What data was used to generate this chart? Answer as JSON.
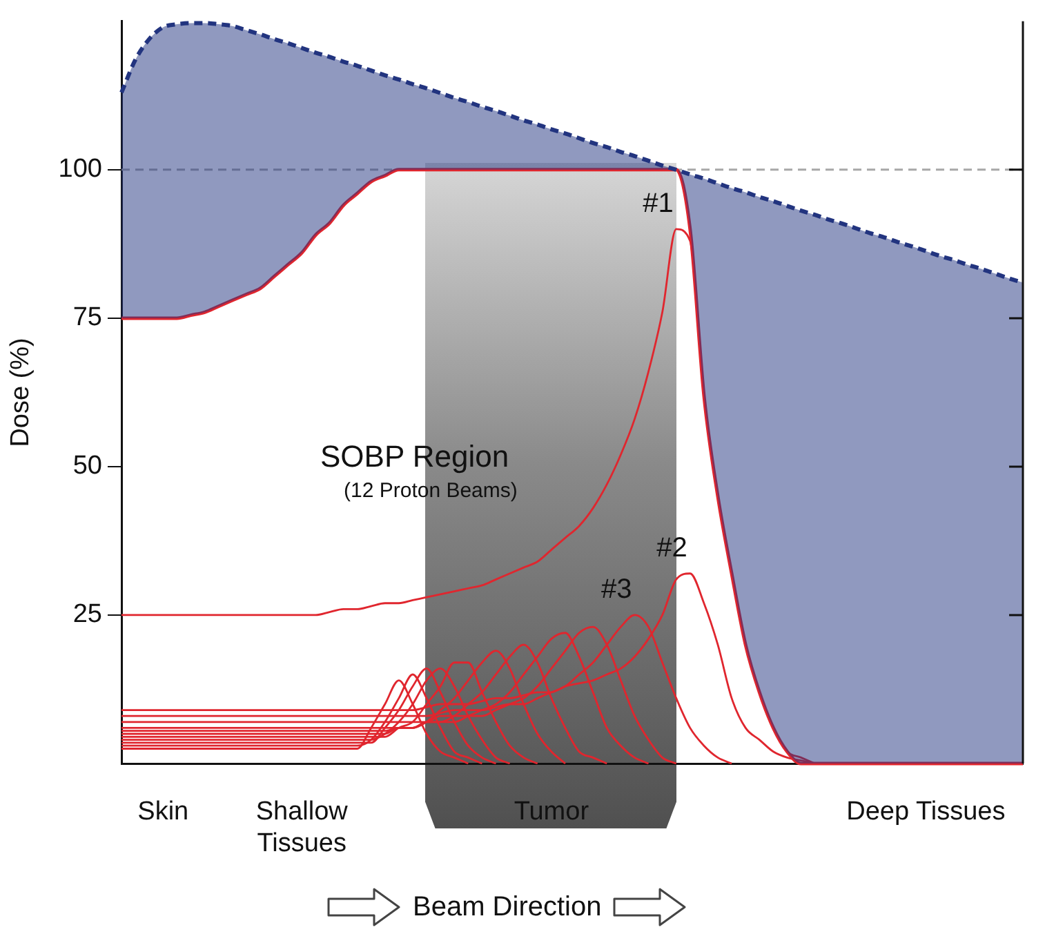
{
  "chart_data": {
    "type": "line",
    "ylabel": "Dose (%)",
    "ylim": [
      0,
      125
    ],
    "yticks": [
      25,
      50,
      75,
      100
    ],
    "grid": false,
    "legend": false,
    "marker": "none",
    "categories": [
      null,
      null,
      null,
      "Skin",
      null,
      null,
      null,
      null,
      null,
      null,
      null,
      null,
      null,
      "Shallow Tissues",
      null,
      null,
      null,
      null,
      null,
      null,
      null,
      null,
      null,
      null,
      null,
      null,
      null,
      null,
      null,
      null,
      null,
      "Tumor",
      null,
      null,
      null,
      null,
      null,
      null,
      null,
      null,
      null,
      null,
      null,
      null,
      null,
      null,
      null,
      null,
      null,
      null,
      null,
      null,
      null,
      null,
      null,
      null,
      null,
      null,
      "Deep Tissues",
      null,
      null,
      null,
      null,
      null,
      null,
      null
    ],
    "ref_lines": [
      {
        "axis": "y",
        "value": 100,
        "color": "#a8a8a8",
        "line_style": "dashed"
      }
    ],
    "annotations": [
      "SOBP Region",
      "(12 Proton Beams)",
      "Beam Direction"
    ],
    "series": [
      {
        "type": "area",
        "color": "#22347f",
        "line_style": "dashed",
        "values": [
          113,
          118.5,
          122,
          124,
          124.5,
          124.7,
          124.7,
          124.5,
          124.2,
          123.5,
          122.8,
          122,
          121.3,
          120.5,
          119.7,
          119,
          118.2,
          117.5,
          116.7,
          115.9,
          115.2,
          114.4,
          113.7,
          112.9,
          112.1,
          111.4,
          110.6,
          109.9,
          109.1,
          108.3,
          107.6,
          106.8,
          106.1,
          105.3,
          104.5,
          103.8,
          103,
          102.3,
          101.5,
          100.7,
          100,
          99.2,
          98.5,
          97.7,
          96.9,
          96.2,
          95.4,
          94.7,
          93.9,
          93.1,
          92.4,
          91.6,
          90.9,
          90.1,
          89.3,
          88.6,
          87.8,
          87.1,
          86.3,
          85.5,
          84.8,
          84,
          83.3,
          82.5,
          81.7,
          81
        ]
      },
      {
        "color": "#e0262e",
        "values": [
          75,
          75,
          75,
          75,
          75,
          75.5,
          76,
          77,
          78,
          79,
          80,
          82,
          84,
          86,
          89,
          91,
          94,
          96,
          98,
          99,
          100,
          100,
          100,
          100,
          100,
          100,
          100,
          100,
          100,
          100,
          100,
          100,
          100,
          100,
          100,
          100,
          100,
          100,
          100,
          100,
          100,
          90,
          62,
          45,
          32,
          20,
          12,
          6,
          2,
          0,
          0,
          0,
          0,
          0,
          0,
          0,
          0,
          0,
          0,
          0,
          0,
          0,
          0,
          0,
          0,
          0
        ]
      },
      {
        "name": "#1",
        "color": "#e0262e",
        "values": [
          25,
          25,
          25,
          25,
          25,
          25,
          25,
          25,
          25,
          25,
          25,
          25,
          25,
          25,
          25,
          25.5,
          26,
          26,
          26.5,
          27,
          27,
          27.5,
          28,
          28.5,
          29,
          29.5,
          30,
          31,
          32,
          33,
          34,
          36,
          38,
          40,
          43,
          47,
          52,
          58,
          66,
          76,
          90,
          88,
          62,
          45,
          32,
          20,
          12,
          6,
          2,
          1,
          0,
          null,
          null,
          null,
          null,
          null,
          null,
          null,
          null,
          null,
          null,
          null,
          null,
          null,
          null,
          null
        ]
      },
      {
        "name": "#2",
        "color": "#e0262e",
        "values": [
          9,
          9,
          9,
          9,
          9,
          9,
          9,
          9,
          9,
          9,
          9,
          9,
          9,
          9,
          9,
          9,
          9,
          9,
          9,
          9,
          9,
          9,
          9.5,
          10,
          10,
          10,
          10.5,
          11,
          11,
          11.5,
          12,
          12,
          13,
          13.5,
          14,
          15,
          16,
          18,
          21,
          25,
          31,
          32,
          27,
          20,
          11,
          6,
          4,
          2,
          1,
          0.5,
          0,
          null,
          null,
          null,
          null,
          null,
          null,
          null,
          null,
          null,
          null,
          null,
          null,
          null,
          null,
          null
        ]
      },
      {
        "name": "#3",
        "color": "#e0262e",
        "values": [
          8,
          8,
          8,
          8,
          8,
          8,
          8,
          8,
          8,
          8,
          8,
          8,
          8,
          8,
          8,
          8,
          8,
          8,
          8,
          8,
          8,
          8,
          8,
          8.5,
          9,
          9,
          9,
          9.5,
          10,
          10,
          11,
          12,
          13,
          15,
          17,
          20,
          23,
          25,
          23,
          17,
          11,
          6,
          3,
          1,
          0,
          null,
          null,
          null,
          null,
          null,
          null,
          null,
          null,
          null,
          null,
          null,
          null,
          null,
          null,
          null,
          null,
          null,
          null,
          null,
          null,
          null
        ]
      },
      {
        "color": "#e0262e",
        "values": [
          7,
          7,
          7,
          7,
          7,
          7,
          7,
          7,
          7,
          7,
          7,
          7,
          7,
          7,
          7,
          7,
          7,
          7,
          7,
          7,
          7,
          7,
          7,
          8,
          8,
          8,
          8,
          9,
          10,
          11,
          13,
          16,
          19,
          22,
          23,
          20,
          14,
          8,
          4,
          1,
          0,
          null,
          null,
          null,
          null,
          null,
          null,
          null,
          null,
          null,
          null,
          null,
          null,
          null,
          null,
          null,
          null,
          null,
          null,
          null,
          null,
          null,
          null,
          null,
          null,
          null
        ]
      },
      {
        "color": "#e0262e",
        "values": [
          6,
          6,
          6,
          6,
          6,
          6,
          6,
          6,
          6,
          6,
          6,
          6,
          6,
          6,
          6,
          6,
          6,
          6,
          6,
          6,
          6,
          6,
          7,
          7,
          7,
          8,
          9,
          10,
          12,
          15,
          18,
          21,
          22,
          18,
          12,
          6,
          3,
          1,
          0,
          null,
          null,
          null,
          null,
          null,
          null,
          null,
          null,
          null,
          null,
          null,
          null,
          null,
          null,
          null,
          null,
          null,
          null,
          null,
          null,
          null,
          null,
          null,
          null,
          null,
          null,
          null
        ]
      },
      {
        "color": "#e0262e",
        "values": [
          5.5,
          5.5,
          5.5,
          5.5,
          5.5,
          5.5,
          5.5,
          5.5,
          5.5,
          5.5,
          5.5,
          5.5,
          5.5,
          5.5,
          5.5,
          5.5,
          5.5,
          5.5,
          5.5,
          5.5,
          6,
          6,
          7,
          7,
          8,
          10,
          12,
          15,
          18,
          20,
          17,
          11,
          6,
          2,
          1,
          0,
          null,
          null,
          null,
          null,
          null,
          null,
          null,
          null,
          null,
          null,
          null,
          null,
          null,
          null,
          null,
          null,
          null,
          null,
          null,
          null,
          null,
          null,
          null,
          null,
          null,
          null,
          null,
          null,
          null,
          null
        ]
      },
      {
        "color": "#e0262e",
        "values": [
          5,
          5,
          5,
          5,
          5,
          5,
          5,
          5,
          5,
          5,
          5,
          5,
          5,
          5,
          5,
          5,
          5,
          5,
          5,
          5,
          6,
          6,
          7,
          9,
          11,
          14,
          17,
          19,
          16,
          10,
          5,
          2,
          0,
          null,
          null,
          null,
          null,
          null,
          null,
          null,
          null,
          null,
          null,
          null,
          null,
          null,
          null,
          null,
          null,
          null,
          null,
          null,
          null,
          null,
          null,
          null,
          null,
          null,
          null,
          null,
          null,
          null,
          null,
          null,
          null,
          null
        ]
      },
      {
        "color": "#e0262e",
        "values": [
          4.5,
          4.5,
          4.5,
          4.5,
          4.5,
          4.5,
          4.5,
          4.5,
          4.5,
          4.5,
          4.5,
          4.5,
          4.5,
          4.5,
          4.5,
          4.5,
          4.5,
          4.5,
          4.5,
          4.5,
          6,
          7,
          10,
          13,
          17,
          17,
          12,
          7,
          3,
          1,
          0,
          null,
          null,
          null,
          null,
          null,
          null,
          null,
          null,
          null,
          null,
          null,
          null,
          null,
          null,
          null,
          null,
          null,
          null,
          null,
          null,
          null,
          null,
          null,
          null,
          null,
          null,
          null,
          null,
          null,
          null,
          null,
          null,
          null,
          null,
          null
        ]
      },
      {
        "color": "#e0262e",
        "values": [
          4,
          4,
          4,
          4,
          4,
          4,
          4,
          4,
          4,
          4,
          4,
          4,
          4,
          4,
          4,
          4,
          4,
          4,
          4,
          5,
          7,
          10,
          14,
          16,
          13,
          8,
          4,
          1,
          0,
          null,
          null,
          null,
          null,
          null,
          null,
          null,
          null,
          null,
          null,
          null,
          null,
          null,
          null,
          null,
          null,
          null,
          null,
          null,
          null,
          null,
          null,
          null,
          null,
          null,
          null,
          null,
          null,
          null,
          null,
          null,
          null,
          null,
          null,
          null,
          null,
          null
        ]
      },
      {
        "color": "#e0262e",
        "values": [
          3.5,
          3.5,
          3.5,
          3.5,
          3.5,
          3.5,
          3.5,
          3.5,
          3.5,
          3.5,
          3.5,
          3.5,
          3.5,
          3.5,
          3.5,
          3.5,
          3.5,
          3.5,
          3.5,
          6,
          9,
          13,
          16,
          12,
          7,
          3,
          1,
          0,
          null,
          null,
          null,
          null,
          null,
          null,
          null,
          null,
          null,
          null,
          null,
          null,
          null,
          null,
          null,
          null,
          null,
          null,
          null,
          null,
          null,
          null,
          null,
          null,
          null,
          null,
          null,
          null,
          null,
          null,
          null,
          null,
          null,
          null,
          null,
          null,
          null,
          null
        ]
      },
      {
        "color": "#e0262e",
        "values": [
          3,
          3,
          3,
          3,
          3,
          3,
          3,
          3,
          3,
          3,
          3,
          3,
          3,
          3,
          3,
          3,
          3,
          3,
          4,
          7,
          11,
          15,
          11,
          6,
          2,
          1,
          0,
          null,
          null,
          null,
          null,
          null,
          null,
          null,
          null,
          null,
          null,
          null,
          null,
          null,
          null,
          null,
          null,
          null,
          null,
          null,
          null,
          null,
          null,
          null,
          null,
          null,
          null,
          null,
          null,
          null,
          null,
          null,
          null,
          null,
          null,
          null,
          null,
          null,
          null,
          null
        ]
      },
      {
        "color": "#e0262e",
        "values": [
          2.5,
          2.5,
          2.5,
          2.5,
          2.5,
          2.5,
          2.5,
          2.5,
          2.5,
          2.5,
          2.5,
          2.5,
          2.5,
          2.5,
          2.5,
          2.5,
          2.5,
          2.5,
          6,
          10,
          14,
          10,
          5,
          2,
          1,
          0,
          null,
          null,
          null,
          null,
          null,
          null,
          null,
          null,
          null,
          null,
          null,
          null,
          null,
          null,
          null,
          null,
          null,
          null,
          null,
          null,
          null,
          null,
          null,
          null,
          null,
          null,
          null,
          null,
          null,
          null,
          null,
          null,
          null,
          null,
          null,
          null,
          null,
          null,
          null,
          null
        ]
      }
    ]
  }
}
